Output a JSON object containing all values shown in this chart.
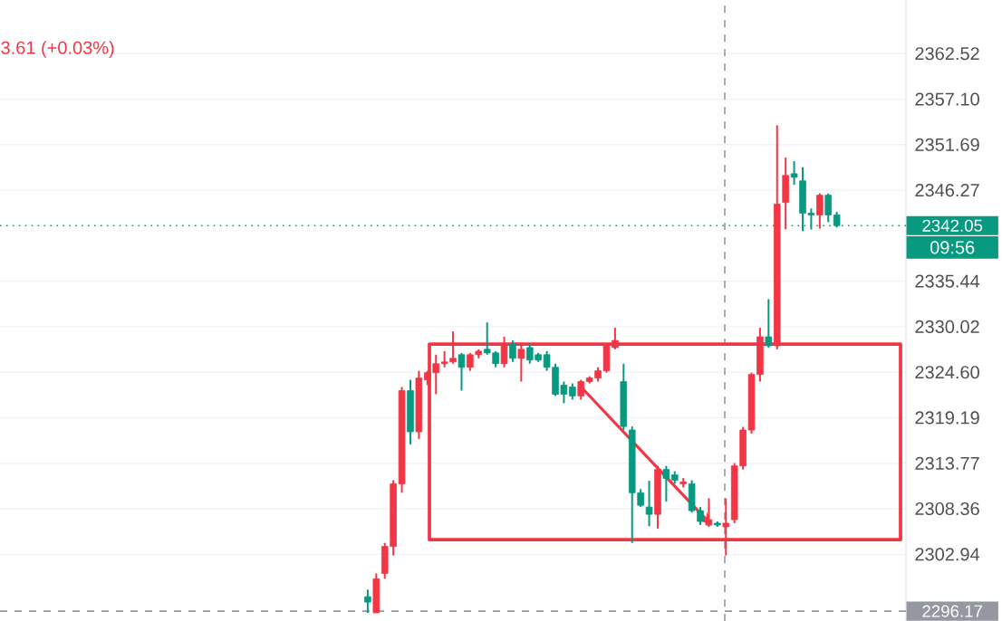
{
  "chart_data": {
    "type": "candlestick",
    "categories": [
      null,
      null,
      null,
      null,
      null,
      null,
      null,
      null,
      null,
      null,
      null,
      null,
      null,
      null,
      null,
      null,
      null,
      null,
      null,
      null,
      null,
      null,
      null,
      null,
      null,
      null,
      null,
      null,
      null,
      null,
      null,
      null,
      null,
      null,
      null,
      null,
      null,
      null,
      null,
      null,
      null,
      null,
      null,
      null,
      null,
      null,
      null,
      null,
      null,
      null,
      null,
      null,
      null,
      null,
      null,
      null
    ],
    "ohlc": [
      [
        2297.89,
        2298.74,
        2295.97,
        2297.25
      ],
      [
        2295.97,
        2300.66,
        2295.97,
        2300.02
      ],
      [
        2300.66,
        2304.29,
        2300.02,
        2303.87
      ],
      [
        2303.87,
        2311.76,
        2302.8,
        2311.33
      ],
      [
        2311.33,
        2322.85,
        2310.26,
        2322.42
      ],
      [
        2322.42,
        2323.7,
        2316.02,
        2317.52
      ],
      [
        2317.52,
        2324.77,
        2316.67,
        2323.91
      ],
      [
        2323.7,
        2324.77,
        2323.06,
        2324.55
      ],
      [
        2324.55,
        2326.69,
        2321.99,
        2325.62
      ],
      [
        2325.62,
        2327.11,
        2325.19,
        2325.83
      ],
      [
        2325.83,
        2329.46,
        2325.62,
        2326.26
      ],
      [
        2326.69,
        2326.9,
        2322.42,
        2325.19
      ],
      [
        2325.19,
        2326.9,
        2324.77,
        2326.69
      ],
      [
        2326.69,
        2327.33,
        2326.26,
        2327.11
      ],
      [
        2327.33,
        2330.53,
        2326.69,
        2326.9
      ],
      [
        2326.9,
        2327.11,
        2325.19,
        2325.62
      ],
      [
        2325.62,
        2328.82,
        2325.19,
        2327.97
      ],
      [
        2327.97,
        2328.39,
        2325.83,
        2326.26
      ],
      [
        2326.26,
        2327.97,
        2323.49,
        2327.33
      ],
      [
        2327.54,
        2327.97,
        2325.62,
        2326.05
      ],
      [
        2326.69,
        2326.9,
        2325.83,
        2326.05
      ],
      [
        2326.69,
        2327.11,
        2324.77,
        2325.19
      ],
      [
        2325.19,
        2325.62,
        2321.78,
        2321.99
      ],
      [
        2323.06,
        2323.49,
        2320.93,
        2321.99
      ],
      [
        2322.85,
        2323.28,
        2321.35,
        2321.78
      ],
      [
        2321.78,
        2323.7,
        2321.35,
        2323.49
      ],
      [
        2323.49,
        2324.13,
        2323.28,
        2323.91
      ],
      [
        2323.91,
        2325.19,
        2323.49,
        2324.77
      ],
      [
        2324.77,
        2327.97,
        2324.55,
        2327.75
      ],
      [
        2327.54,
        2329.89,
        2327.33,
        2328.39
      ],
      [
        2323.49,
        2325.62,
        2317.73,
        2318.15
      ],
      [
        2317.73,
        2318.15,
        2304.29,
        2310.26
      ],
      [
        2310.26,
        2310.69,
        2308.56,
        2308.77
      ],
      [
        2308.56,
        2311.69,
        2306.28,
        2307.7
      ],
      [
        2307.7,
        2313.46,
        2306.0,
        2313.03
      ],
      [
        2313.03,
        2313.46,
        2309.2,
        2311.97
      ],
      [
        2312.39,
        2312.82,
        2311.33,
        2311.76
      ],
      [
        2311.33,
        2312.0,
        2310.9,
        2311.55
      ],
      [
        2311.33,
        2311.76,
        2307.9,
        2308.13
      ],
      [
        2308.13,
        2308.56,
        2306.42,
        2306.85
      ],
      [
        2306.42,
        2309.6,
        2306.21,
        2307.06
      ],
      [
        2306.64,
        2306.85,
        2306.21,
        2306.42
      ],
      [
        2306.21,
        2309.6,
        2302.8,
        2306.64
      ],
      [
        2307.06,
        2313.8,
        2306.64,
        2313.46
      ],
      [
        2313.46,
        2318.1,
        2313.03,
        2317.73
      ],
      [
        2317.73,
        2324.55,
        2317.3,
        2324.34
      ],
      [
        2324.34,
        2329.89,
        2323.5,
        2328.82
      ],
      [
        2328.82,
        2333.3,
        2327.5,
        2327.75
      ],
      [
        2327.75,
        2353.99,
        2327.33,
        2344.6
      ],
      [
        2344.81,
        2350.15,
        2341.62,
        2348.02
      ],
      [
        2348.23,
        2349.72,
        2346.9,
        2347.8
      ],
      [
        2347.38,
        2349.0,
        2341.4,
        2343.54
      ],
      [
        2343.54,
        2344.1,
        2341.6,
        2343.32
      ],
      [
        2343.32,
        2345.9,
        2341.7,
        2345.67
      ],
      [
        2345.67,
        2345.88,
        2342.47,
        2343.32
      ],
      [
        2343.32,
        2343.7,
        2341.83,
        2342.05
      ]
    ],
    "colors": [
      "#089981",
      "#f23645",
      "#f23645",
      "#f23645",
      "#f23645",
      "#089981",
      "#f23645",
      "#f23645",
      "#f23645",
      "#f23645",
      "#f23645",
      "#089981",
      "#f23645",
      "#f23645",
      "#089981",
      "#089981",
      "#f23645",
      "#089981",
      "#f23645",
      "#089981",
      "#089981",
      "#089981",
      "#089981",
      "#089981",
      "#089981",
      "#f23645",
      "#f23645",
      "#f23645",
      "#f23645",
      "#f23645",
      "#089981",
      "#089981",
      "#089981",
      "#089981",
      "#f23645",
      "#089981",
      "#089981",
      "#f23645",
      "#089981",
      "#089981",
      "#f23645",
      "#089981",
      "#f23645",
      "#f23645",
      "#f23645",
      "#f23645",
      "#f23645",
      "#089981",
      "#f23645",
      "#f23645",
      "#089981",
      "#089981",
      "#089981",
      "#f23645",
      "#089981",
      "#089981"
    ],
    "ylim": [
      2295.0,
      2368.9
    ],
    "yticks": [
      2362.52,
      {
        "value": 2357.1,
        "label": "2357.10"
      },
      2351.69,
      2346.27,
      2335.44,
      2330.02,
      {
        "value": 2324.6,
        "label": "2324.60"
      },
      2319.19,
      2313.77,
      2308.36,
      2302.94
    ],
    "ref_lines": [
      {
        "axis": "y",
        "value": 2342.05,
        "label": "2342.05",
        "color": "#089981",
        "line_style": "dotted"
      },
      {
        "axis": "y",
        "value": 2296.17,
        "label": "2296.17",
        "color": "#9598a1",
        "line_style": "dashed"
      }
    ],
    "annotations": [
      "3.61 (+0.03%)",
      "09:56"
    ],
    "grid": "y",
    "tick_labels": "y"
  }
}
